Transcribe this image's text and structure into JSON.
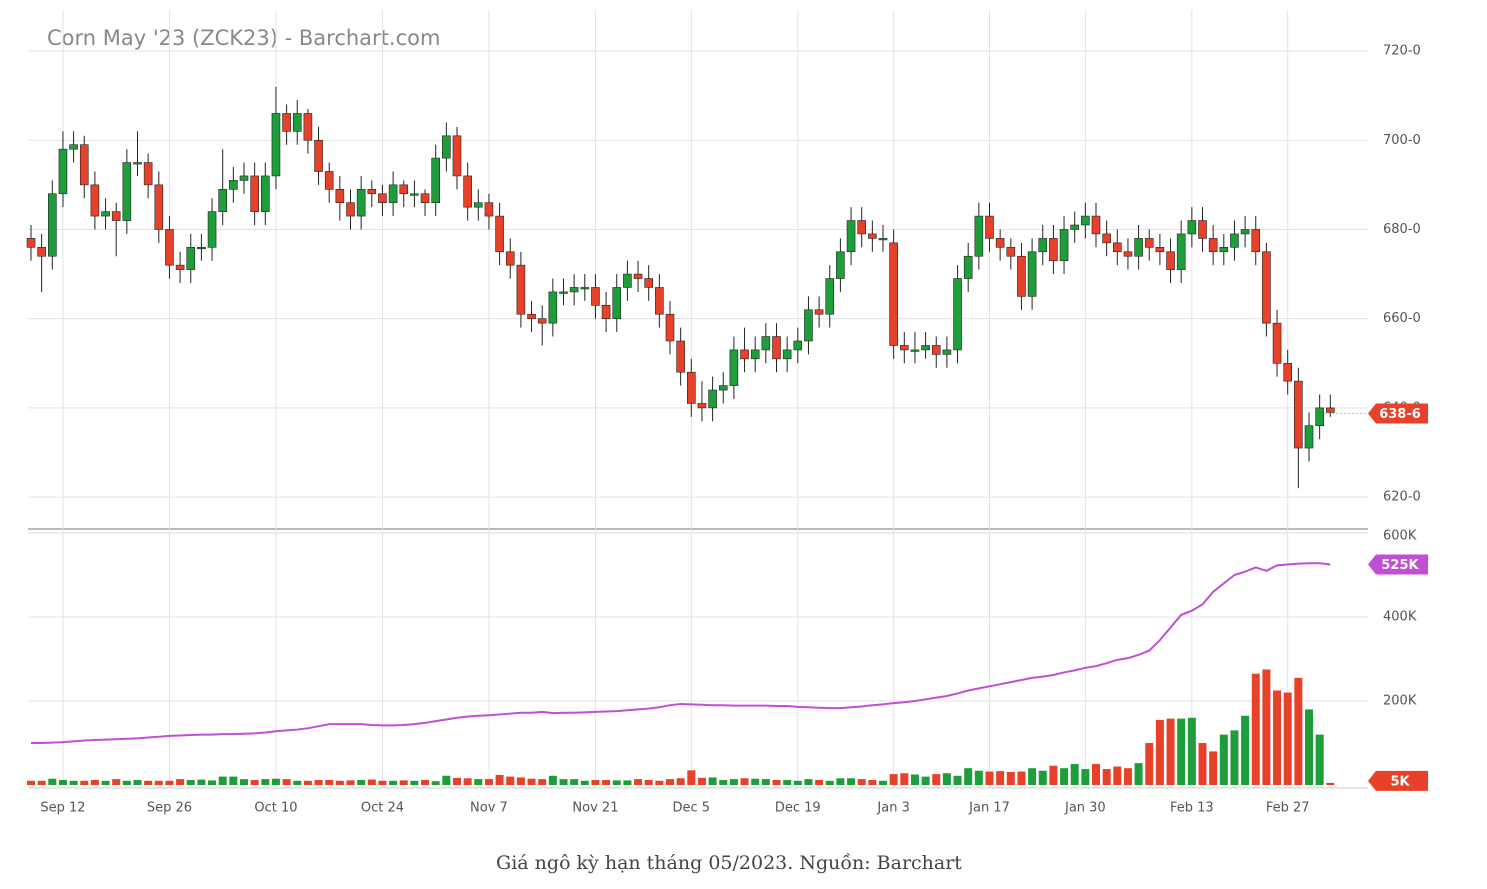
{
  "caption": "Giá ngô kỳ hạn tháng 05/2023. Nguồn: Barchart",
  "chart_data": {
    "type": "candlestick",
    "title": "Corn May '23 (ZCK23) - Barchart.com",
    "up_color": "#1e9e3a",
    "down_color": "#e8412a",
    "categories": [
      null,
      null,
      null,
      "Sep 12",
      null,
      null,
      null,
      null,
      null,
      null,
      null,
      null,
      null,
      "Sep 26",
      null,
      null,
      null,
      null,
      null,
      null,
      null,
      null,
      null,
      "Oct 10",
      null,
      null,
      null,
      null,
      null,
      null,
      null,
      null,
      null,
      "Oct 24",
      null,
      null,
      null,
      null,
      null,
      null,
      null,
      null,
      null,
      "Nov 7",
      null,
      null,
      null,
      null,
      null,
      null,
      null,
      null,
      null,
      "Nov 21",
      null,
      null,
      null,
      null,
      null,
      null,
      null,
      null,
      "Dec 5",
      null,
      null,
      null,
      null,
      null,
      null,
      null,
      null,
      null,
      "Dec 19",
      null,
      null,
      null,
      null,
      null,
      null,
      null,
      null,
      "Jan 3",
      null,
      null,
      null,
      null,
      null,
      null,
      null,
      null,
      "Jan 17",
      null,
      null,
      null,
      null,
      null,
      null,
      null,
      null,
      "Jan 30",
      null,
      null,
      null,
      null,
      null,
      null,
      null,
      null,
      null,
      "Feb 13",
      null,
      null,
      null,
      null,
      null,
      null,
      null,
      null,
      "Feb 27",
      null,
      null,
      null,
      null
    ],
    "candles": [
      [
        678,
        681,
        673,
        676
      ],
      [
        676,
        679,
        666,
        674
      ],
      [
        674,
        691,
        671,
        688
      ],
      [
        688,
        702,
        685,
        698
      ],
      [
        698,
        702,
        695,
        699
      ],
      [
        699,
        701,
        687,
        690
      ],
      [
        690,
        693,
        680,
        683
      ],
      [
        683,
        687,
        680,
        684
      ],
      [
        684,
        686,
        674,
        682
      ],
      [
        682,
        698,
        679,
        695
      ],
      [
        695,
        702,
        692,
        695
      ],
      [
        695,
        697,
        687,
        690
      ],
      [
        690,
        693,
        677,
        680
      ],
      [
        680,
        683,
        669,
        672
      ],
      [
        672,
        675,
        668,
        671
      ],
      [
        671,
        679,
        668,
        676
      ],
      [
        676,
        679,
        673,
        676
      ],
      [
        676,
        687,
        673,
        684
      ],
      [
        684,
        698,
        681,
        689
      ],
      [
        689,
        694,
        686,
        691
      ],
      [
        691,
        695,
        688,
        692
      ],
      [
        692,
        695,
        681,
        684
      ],
      [
        684,
        695,
        681,
        692
      ],
      [
        692,
        712,
        689,
        706
      ],
      [
        706,
        708,
        699,
        702
      ],
      [
        702,
        709,
        699,
        706
      ],
      [
        706,
        707,
        697,
        700
      ],
      [
        700,
        703,
        690,
        693
      ],
      [
        693,
        695,
        686,
        689
      ],
      [
        689,
        692,
        682,
        686
      ],
      [
        686,
        689,
        680,
        683
      ],
      [
        683,
        692,
        680,
        689
      ],
      [
        689,
        691,
        685,
        688
      ],
      [
        688,
        690,
        683,
        686
      ],
      [
        686,
        693,
        683,
        690
      ],
      [
        690,
        691,
        685,
        688
      ],
      [
        688,
        691,
        685,
        688
      ],
      [
        688,
        689,
        683,
        686
      ],
      [
        686,
        699,
        683,
        696
      ],
      [
        696,
        704,
        693,
        701
      ],
      [
        701,
        703,
        689,
        692
      ],
      [
        692,
        695,
        682,
        685
      ],
      [
        685,
        689,
        682,
        686
      ],
      [
        686,
        688,
        680,
        683
      ],
      [
        683,
        686,
        672,
        675
      ],
      [
        675,
        678,
        669,
        672
      ],
      [
        672,
        675,
        658,
        661
      ],
      [
        661,
        664,
        657,
        660
      ],
      [
        660,
        663,
        654,
        659
      ],
      [
        659,
        669,
        656,
        666
      ],
      [
        666,
        669,
        663,
        666
      ],
      [
        666,
        670,
        663,
        667
      ],
      [
        667,
        670,
        664,
        667
      ],
      [
        667,
        670,
        660,
        663
      ],
      [
        663,
        666,
        657,
        660
      ],
      [
        660,
        670,
        657,
        667
      ],
      [
        667,
        673,
        664,
        670
      ],
      [
        670,
        673,
        666,
        669
      ],
      [
        669,
        672,
        664,
        667
      ],
      [
        667,
        670,
        658,
        661
      ],
      [
        661,
        664,
        652,
        655
      ],
      [
        655,
        658,
        645,
        648
      ],
      [
        648,
        651,
        638,
        641
      ],
      [
        641,
        646,
        637,
        640
      ],
      [
        640,
        647,
        637,
        644
      ],
      [
        644,
        648,
        641,
        645
      ],
      [
        645,
        656,
        642,
        653
      ],
      [
        653,
        658,
        648,
        651
      ],
      [
        651,
        656,
        648,
        653
      ],
      [
        653,
        659,
        650,
        656
      ],
      [
        656,
        659,
        648,
        651
      ],
      [
        651,
        656,
        648,
        653
      ],
      [
        653,
        658,
        650,
        655
      ],
      [
        655,
        665,
        652,
        662
      ],
      [
        662,
        665,
        658,
        661
      ],
      [
        661,
        672,
        658,
        669
      ],
      [
        669,
        678,
        666,
        675
      ],
      [
        675,
        685,
        672,
        682
      ],
      [
        682,
        685,
        676,
        679
      ],
      [
        679,
        682,
        675,
        678
      ],
      [
        678,
        681,
        675,
        678
      ],
      [
        677,
        680,
        651,
        654
      ],
      [
        654,
        657,
        650,
        653
      ],
      [
        653,
        657,
        650,
        653
      ],
      [
        653,
        657,
        651,
        654
      ],
      [
        654,
        656,
        649,
        652
      ],
      [
        652,
        656,
        649,
        653
      ],
      [
        653,
        672,
        650,
        669
      ],
      [
        669,
        677,
        666,
        674
      ],
      [
        674,
        686,
        671,
        683
      ],
      [
        683,
        686,
        675,
        678
      ],
      [
        678,
        680,
        673,
        676
      ],
      [
        676,
        678,
        671,
        674
      ],
      [
        674,
        677,
        662,
        665
      ],
      [
        665,
        678,
        662,
        675
      ],
      [
        675,
        681,
        672,
        678
      ],
      [
        678,
        681,
        670,
        673
      ],
      [
        673,
        683,
        670,
        680
      ],
      [
        680,
        684,
        677,
        681
      ],
      [
        681,
        686,
        678,
        683
      ],
      [
        683,
        686,
        676,
        679
      ],
      [
        679,
        682,
        674,
        677
      ],
      [
        677,
        680,
        672,
        675
      ],
      [
        675,
        678,
        671,
        674
      ],
      [
        674,
        681,
        671,
        678
      ],
      [
        678,
        680,
        673,
        676
      ],
      [
        676,
        679,
        672,
        675
      ],
      [
        675,
        678,
        668,
        671
      ],
      [
        671,
        682,
        668,
        679
      ],
      [
        679,
        685,
        676,
        682
      ],
      [
        682,
        685,
        675,
        678
      ],
      [
        678,
        681,
        672,
        675
      ],
      [
        675,
        679,
        672,
        676
      ],
      [
        676,
        682,
        673,
        679
      ],
      [
        679,
        683,
        676,
        680
      ],
      [
        680,
        683,
        672,
        675
      ],
      [
        675,
        677,
        656,
        659
      ],
      [
        659,
        662,
        647,
        650
      ],
      [
        650,
        653,
        643,
        646
      ],
      [
        646,
        649,
        622,
        631
      ],
      [
        631,
        639,
        628,
        636
      ],
      [
        636,
        643,
        633,
        640
      ],
      [
        640,
        643,
        638,
        639
      ]
    ],
    "ylim": [
      613.3,
      729.2
    ],
    "yticks": [
      {
        "value": 620,
        "label": "620-0"
      },
      {
        "value": 640,
        "label": "640-0"
      },
      {
        "value": 660,
        "label": "660-0"
      },
      {
        "value": 680,
        "label": "680-0"
      },
      {
        "value": 700,
        "label": "700-0"
      },
      {
        "value": 720,
        "label": "720-0"
      }
    ],
    "last_price": {
      "value": 638.75,
      "label": "638-6"
    },
    "volume": {
      "values": [
        10000,
        10000,
        15000,
        12000,
        10000,
        10000,
        12000,
        10000,
        14000,
        10000,
        12000,
        10000,
        10000,
        10000,
        14000,
        12000,
        13000,
        11000,
        20000,
        20000,
        14000,
        12000,
        14000,
        15000,
        14000,
        10000,
        10000,
        12000,
        12000,
        10000,
        11000,
        12000,
        13000,
        10000,
        10000,
        11000,
        10000,
        12000,
        9000,
        22000,
        17000,
        16000,
        14000,
        14000,
        24000,
        20000,
        18000,
        15000,
        14000,
        22000,
        14000,
        14000,
        10000,
        12000,
        12000,
        11000,
        11000,
        14000,
        12000,
        10000,
        14000,
        16000,
        35000,
        17000,
        18000,
        12000,
        14000,
        16000,
        15000,
        14000,
        12000,
        12000,
        10000,
        14000,
        12000,
        10000,
        16000,
        16000,
        14000,
        12000,
        10000,
        26000,
        28000,
        25000,
        20000,
        26000,
        28000,
        22000,
        40000,
        34000,
        32000,
        33000,
        31000,
        32000,
        40000,
        34000,
        46000,
        40000,
        50000,
        38000,
        50000,
        38000,
        44000,
        40000,
        52000,
        100000,
        155000,
        158000,
        158000,
        160000,
        100000,
        80000,
        120000,
        130000,
        165000,
        265000,
        275000,
        225000,
        220000,
        255000,
        180000,
        120000,
        5000
      ],
      "ylim": [
        0,
        600000
      ],
      "yticks": [
        {
          "value": 200000,
          "label": "200K"
        },
        {
          "value": 400000,
          "label": "400K"
        },
        {
          "value": 600000,
          "label": "600K"
        }
      ],
      "last": {
        "value": 5000,
        "label": "5K"
      }
    },
    "open_interest": {
      "color": "#c04fd6",
      "values": [
        100000,
        100000,
        101000,
        102000,
        104000,
        106000,
        107000,
        108000,
        109000,
        110000,
        111000,
        113000,
        115000,
        117000,
        118000,
        119000,
        120000,
        120000,
        121000,
        121000,
        122000,
        123000,
        125000,
        128000,
        130000,
        132000,
        135000,
        140000,
        145000,
        145000,
        145000,
        145000,
        143000,
        142000,
        142000,
        143000,
        145000,
        148000,
        152000,
        156000,
        160000,
        163000,
        165000,
        166000,
        168000,
        170000,
        172000,
        172000,
        174000,
        171000,
        172000,
        172000,
        173000,
        174000,
        175000,
        176000,
        178000,
        180000,
        182000,
        185000,
        190000,
        193000,
        192000,
        191000,
        190000,
        190000,
        189000,
        189000,
        189000,
        189000,
        188000,
        188000,
        186000,
        185000,
        184000,
        183000,
        183000,
        185000,
        187000,
        190000,
        192000,
        195000,
        197000,
        200000,
        204000,
        208000,
        212000,
        218000,
        225000,
        230000,
        235000,
        240000,
        245000,
        250000,
        255000,
        258000,
        262000,
        268000,
        273000,
        279000,
        283000,
        290000,
        298000,
        302000,
        310000,
        320000,
        345000,
        375000,
        405000,
        415000,
        430000,
        460000,
        480000,
        500000,
        508000,
        518000,
        510000,
        523000,
        525000,
        527000,
        528000,
        528000,
        525000
      ],
      "last": {
        "value": 525000,
        "label": "525K"
      }
    }
  }
}
